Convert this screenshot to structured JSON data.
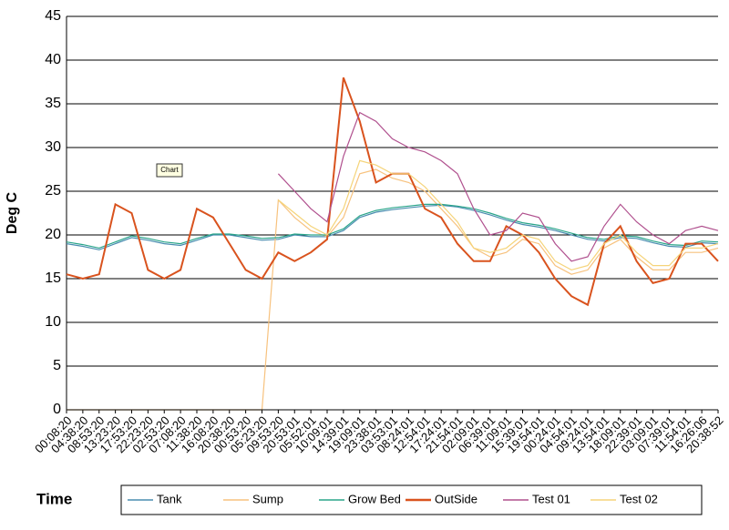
{
  "chart_data": {
    "type": "line",
    "y_label": "Deg C",
    "x_label": "Time",
    "tooltip": "Chart",
    "categories": [
      "00:08:20",
      "04:38:20",
      "08:53:20",
      "13:23:20",
      "17:53:20",
      "22:23:20",
      "02:53:20",
      "07:08:20",
      "11:38:20",
      "16:08:20",
      "20:38:20",
      "00:53:20",
      "05:23:20",
      "09:53:20",
      "20:53:01",
      "05:52:01",
      "10:09:01",
      "14:39:01",
      "19:09:01",
      "23:38:01",
      "03:53:01",
      "08:24:01",
      "12:54:01",
      "17:24:01",
      "21:54:01",
      "02:09:01",
      "06:39:01",
      "11:09:01",
      "15:39:01",
      "19:54:01",
      "00:24:01",
      "04:54:01",
      "09:24:01",
      "13:54:01",
      "18:09:01",
      "22:39:01",
      "03:09:01",
      "07:39:01",
      "11:54:01",
      "16:26:06",
      "20:38:52"
    ],
    "series": [
      {
        "name": "Tank",
        "color": "#4a8db0",
        "values": [
          19,
          18.7,
          18.3,
          19,
          19.7,
          19.4,
          19,
          18.8,
          19.4,
          20,
          20,
          19.7,
          19.4,
          19.5,
          20,
          19.8,
          19.8,
          20.5,
          22,
          22.6,
          22.9,
          23.1,
          23.3,
          23.4,
          23.2,
          22.8,
          22.3,
          21.7,
          21.2,
          20.9,
          20.5,
          20,
          19.5,
          19.3,
          19.7,
          19.6,
          19.1,
          18.7,
          18.6,
          19.1,
          19
        ]
      },
      {
        "name": "Sump",
        "color": "#f7c27e",
        "values": [
          0,
          0,
          0,
          0,
          0,
          0,
          0,
          0,
          0,
          0,
          0,
          0,
          0,
          24,
          22,
          20.5,
          19.8,
          22,
          27,
          27.5,
          26.5,
          26,
          25,
          23,
          21,
          18.5,
          17.5,
          18,
          19.5,
          19,
          16.5,
          15.5,
          16,
          18.5,
          19.5,
          17.5,
          16,
          16,
          18,
          18,
          18.5
        ]
      },
      {
        "name": "Grow Bed",
        "color": "#2aa58a",
        "values": [
          19.2,
          18.9,
          18.5,
          19.2,
          19.9,
          19.6,
          19.2,
          19,
          19.6,
          20.1,
          20.1,
          19.9,
          19.6,
          19.7,
          20.1,
          20,
          20,
          20.7,
          22.2,
          22.8,
          23.1,
          23.3,
          23.5,
          23.5,
          23.3,
          23,
          22.5,
          21.9,
          21.4,
          21.1,
          20.7,
          20.2,
          19.7,
          19.5,
          19.9,
          19.8,
          19.3,
          18.9,
          18.8,
          19.3,
          19.2
        ]
      },
      {
        "name": "OutSide",
        "color": "#d9531e",
        "values": [
          15.5,
          15,
          15.5,
          23.5,
          22.5,
          16,
          15,
          16,
          23,
          22,
          19,
          16,
          15,
          18,
          17,
          18,
          19.5,
          38,
          33,
          26,
          27,
          27,
          23,
          22,
          19,
          17,
          17,
          21,
          20,
          18,
          15,
          13,
          12,
          19,
          21,
          17,
          14.5,
          15,
          19,
          19,
          17
        ]
      },
      {
        "name": "Test 01",
        "color": "#b0508e",
        "values": [
          null,
          null,
          null,
          null,
          null,
          null,
          null,
          null,
          null,
          null,
          null,
          null,
          null,
          27,
          25,
          23,
          21.5,
          29,
          34,
          33,
          31,
          30,
          29.5,
          28.5,
          27,
          23,
          20,
          20.5,
          22.5,
          22,
          19,
          17,
          17.5,
          21,
          23.5,
          21.5,
          20,
          19,
          20.5,
          21,
          20.5
        ]
      },
      {
        "name": "Test 02",
        "color": "#f5d47a",
        "values": [
          null,
          null,
          null,
          null,
          null,
          null,
          null,
          null,
          null,
          null,
          null,
          null,
          null,
          24,
          22.5,
          21,
          20,
          23,
          28.5,
          28,
          27,
          27,
          25.5,
          23.5,
          21.5,
          18.5,
          18,
          18.5,
          20,
          19.5,
          17,
          16,
          16.5,
          19,
          20,
          18,
          16.5,
          16.5,
          18.5,
          18.5,
          19
        ]
      }
    ],
    "ylim": [
      0,
      45
    ],
    "yticks": [
      0,
      5,
      10,
      15,
      20,
      25,
      30,
      35,
      40,
      45
    ],
    "grid": true
  }
}
